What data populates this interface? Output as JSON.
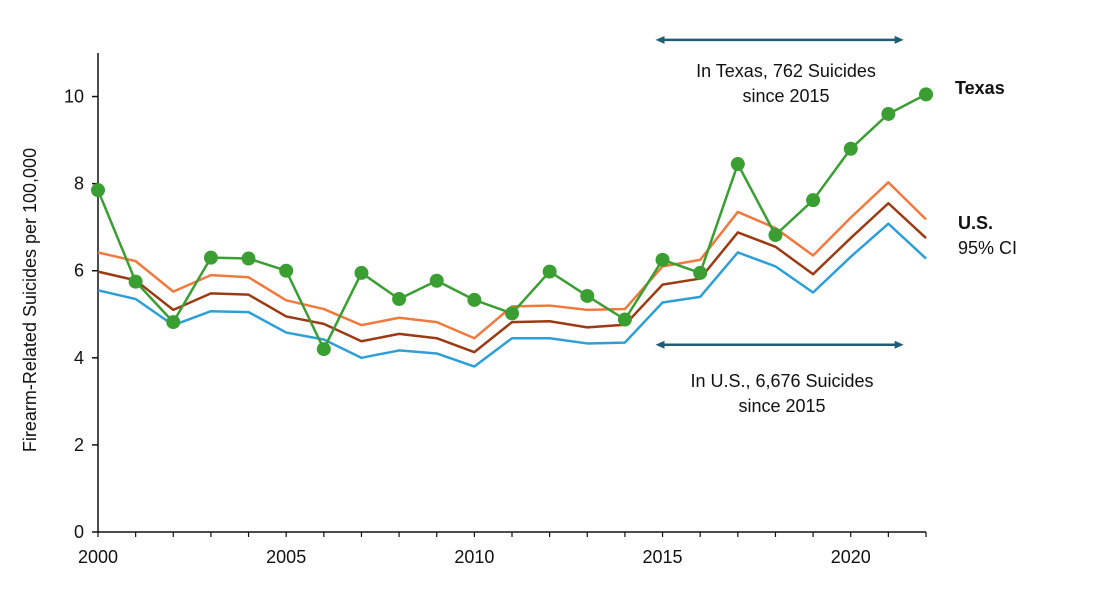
{
  "chart_data": {
    "type": "line",
    "title": "",
    "xlabel": "",
    "ylabel": "Firearm-Related Suicides per 100,000",
    "xlim": [
      2000,
      2022
    ],
    "ylim": [
      0,
      11
    ],
    "grid": false,
    "x": [
      2000,
      2001,
      2002,
      2003,
      2004,
      2005,
      2006,
      2007,
      2008,
      2009,
      2010,
      2011,
      2012,
      2013,
      2014,
      2015,
      2016,
      2017,
      2018,
      2019,
      2020,
      2021,
      2022
    ],
    "x_ticks": [
      2000,
      2005,
      2010,
      2015,
      2020
    ],
    "y_ticks": [
      0,
      2,
      4,
      6,
      8,
      10
    ],
    "series": [
      {
        "key": "us_upper",
        "color": "#F07A3E",
        "values": [
          6.42,
          6.22,
          5.52,
          5.9,
          5.85,
          5.32,
          5.12,
          4.75,
          4.92,
          4.82,
          4.45,
          5.18,
          5.2,
          5.1,
          5.12,
          6.1,
          6.25,
          7.35,
          6.98,
          6.35,
          7.22,
          8.03,
          7.18
        ]
      },
      {
        "key": "us_rate",
        "color": "#9B3B14",
        "values": [
          5.98,
          5.78,
          5.1,
          5.48,
          5.45,
          4.95,
          4.78,
          4.38,
          4.55,
          4.45,
          4.13,
          4.82,
          4.84,
          4.7,
          4.76,
          5.68,
          5.82,
          6.88,
          6.55,
          5.92,
          6.75,
          7.55,
          6.75
        ]
      },
      {
        "key": "us_lower",
        "color": "#2E9FD6",
        "values": [
          5.55,
          5.35,
          4.75,
          5.07,
          5.05,
          4.58,
          4.42,
          4.0,
          4.17,
          4.1,
          3.8,
          4.45,
          4.45,
          4.33,
          4.35,
          5.27,
          5.4,
          6.42,
          6.1,
          5.5,
          6.32,
          7.08,
          6.28
        ]
      },
      {
        "key": "texas",
        "color": "#3A9E33",
        "values": [
          7.85,
          5.75,
          4.82,
          6.3,
          6.28,
          6.0,
          4.2,
          5.95,
          5.35,
          5.77,
          5.33,
          5.02,
          5.98,
          5.42,
          4.88,
          6.25,
          5.95,
          8.45,
          6.82,
          7.62,
          8.8,
          9.6,
          10.05
        ]
      }
    ],
    "labels": {
      "texas": "Texas",
      "us": "U.S.",
      "us_ci": "95% CI"
    },
    "annotations": {
      "texas_line1": "In Texas, 762 Suicides",
      "texas_line2": "since 2015",
      "us_line1": "In U.S., 6,676 Suicides",
      "us_line2": "since 2015",
      "arrow_color": "#1F5D74",
      "texas_arrow_value": 11.3,
      "us_arrow_value": 4.3,
      "arrow_from": 2015,
      "arrow_to": 2021.3
    }
  }
}
